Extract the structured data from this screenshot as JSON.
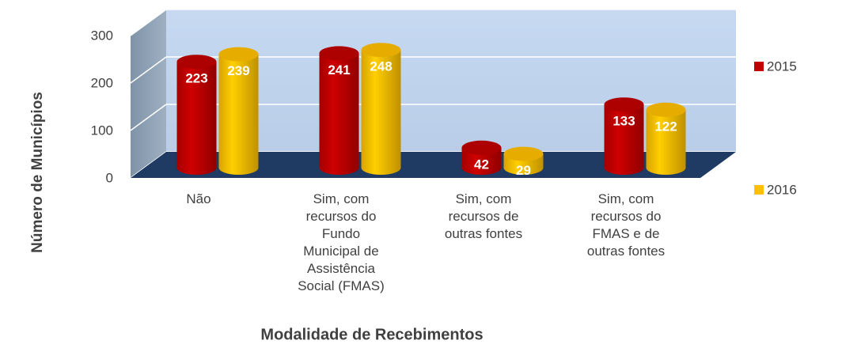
{
  "chart_data": {
    "type": "bar3d",
    "categories": [
      "Não",
      "Sim, com recursos do Fundo Municipal de Assistência Social (FMAS)",
      "Sim, com recursos de outras fontes",
      "Sim, com recursos do FMAS e de outras fontes"
    ],
    "series": [
      {
        "name": "2015",
        "color": "#c00000",
        "values": [
          223,
          241,
          42,
          133
        ]
      },
      {
        "name": "2016",
        "color": "#ffc000",
        "values": [
          239,
          248,
          29,
          122
        ]
      }
    ],
    "ylim": [
      0,
      300
    ],
    "yticks": [
      0,
      100,
      200,
      300
    ],
    "grid": true,
    "xlabel": "Modalidade de Recebimentos",
    "ylabel": "Número de Municípios",
    "legend": "right"
  }
}
